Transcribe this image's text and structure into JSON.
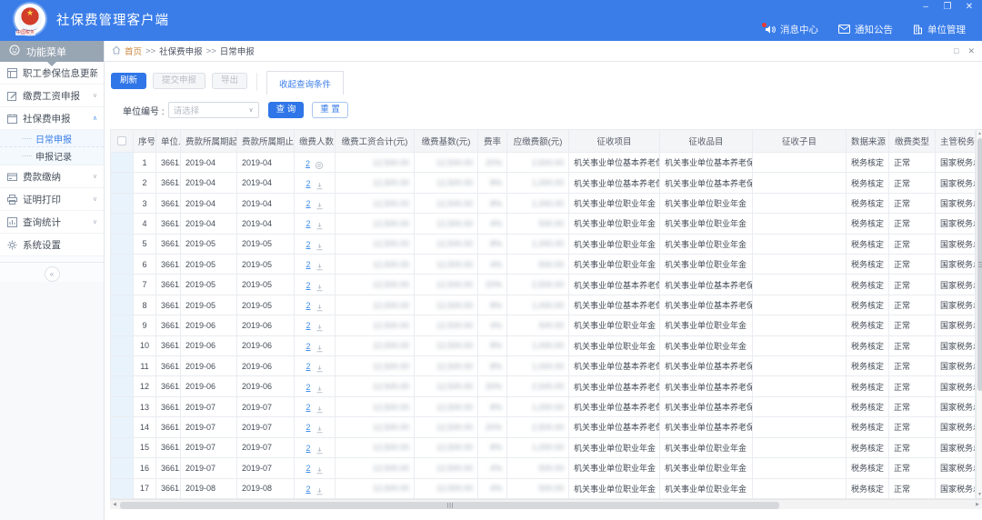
{
  "window": {
    "title": "社保费管理客户端",
    "controls": {
      "minimize": "–",
      "restore": "❐",
      "close": "✕"
    }
  },
  "logo": {
    "seal_text": "中国税务",
    "star": "★"
  },
  "header": {
    "nav": [
      {
        "icon": "speaker-icon",
        "label": "消息中心",
        "badge": true
      },
      {
        "icon": "mail-icon",
        "label": "通知公告",
        "badge": false
      },
      {
        "icon": "building-icon",
        "label": "单位管理",
        "badge": false
      }
    ]
  },
  "sidebar": {
    "title": "功能菜单",
    "collapse_label": "«",
    "items": [
      {
        "label": "职工参保信息更新",
        "icon": "form-icon",
        "chevron": null
      },
      {
        "label": "缴费工资申报",
        "icon": "edit-icon",
        "chevron": "down"
      },
      {
        "label": "社保费申报",
        "icon": "report-icon",
        "chevron": "up",
        "children": [
          {
            "label": "日常申报",
            "selected": true
          },
          {
            "label": "申报记录",
            "selected": false
          }
        ]
      },
      {
        "label": "费款缴纳",
        "icon": "payment-icon",
        "chevron": "down"
      },
      {
        "label": "证明打印",
        "icon": "print-icon",
        "chevron": "down"
      },
      {
        "label": "查询统计",
        "icon": "stats-icon",
        "chevron": "down"
      },
      {
        "label": "系统设置",
        "icon": "settings-icon",
        "chevron": null
      }
    ]
  },
  "breadcrumb": {
    "home": "首页",
    "sep": ">>",
    "items": [
      "社保费申报",
      "日常申报"
    ]
  },
  "panel": {
    "restore": "□",
    "close": "✕"
  },
  "toolbar": {
    "refresh": "刷新",
    "submit": "提交申报",
    "export": "导出",
    "collapse_query": "收起查询条件"
  },
  "query": {
    "label": "单位编号 :",
    "placeholder": "请选择",
    "search": "查 询",
    "reset": "重 置"
  },
  "table": {
    "columns": [
      "序号",
      "单位...",
      "费款所属期起",
      "费款所属期止",
      "缴费人数",
      "缴费工资合计(元)",
      "缴费基数(元)",
      "费率",
      "应缴费额(元)",
      "征收项目",
      "征收品目",
      "征收子目",
      "数据来源",
      "缴费类型",
      "主管税务机关"
    ],
    "redacted_columns": [
      "缴费工资合计(元)",
      "缴费基数(元)",
      "费率",
      "应缴费额(元)"
    ],
    "rows": [
      {
        "seq": "1",
        "unit": "3661...",
        "start": "2019-04",
        "end": "2019-04",
        "people": "2",
        "action": "view",
        "salary": "12,500.00",
        "base": "12,500.00",
        "rate": "20%",
        "amount": "2,500.00",
        "project": "机关事业单位基本养老保险费",
        "item": "机关事业单位基本养老保险...",
        "sub": "",
        "source": "税务核定",
        "type": "正常",
        "authority": "国家税务总局..."
      },
      {
        "seq": "2",
        "unit": "3661...",
        "start": "2019-04",
        "end": "2019-04",
        "people": "2",
        "action": "download",
        "salary": "12,500.00",
        "base": "12,500.00",
        "rate": "8%",
        "amount": "1,000.00",
        "project": "机关事业单位基本养老保险费",
        "item": "机关事业单位基本养老保险...",
        "sub": "",
        "source": "税务核定",
        "type": "正常",
        "authority": "国家税务总局..."
      },
      {
        "seq": "3",
        "unit": "3661...",
        "start": "2019-04",
        "end": "2019-04",
        "people": "2",
        "action": "download",
        "salary": "12,500.00",
        "base": "12,500.00",
        "rate": "8%",
        "amount": "1,000.00",
        "project": "机关事业单位职业年金",
        "item": "机关事业单位职业年金（单...",
        "sub": "",
        "source": "税务核定",
        "type": "正常",
        "authority": "国家税务总局..."
      },
      {
        "seq": "4",
        "unit": "3661...",
        "start": "2019-04",
        "end": "2019-04",
        "people": "2",
        "action": "download",
        "salary": "12,500.00",
        "base": "12,500.00",
        "rate": "4%",
        "amount": "500.00",
        "project": "机关事业单位职业年金",
        "item": "机关事业单位职业年金（个...",
        "sub": "",
        "source": "税务核定",
        "type": "正常",
        "authority": "国家税务总局..."
      },
      {
        "seq": "5",
        "unit": "3661...",
        "start": "2019-05",
        "end": "2019-05",
        "people": "2",
        "action": "download",
        "salary": "12,500.00",
        "base": "12,500.00",
        "rate": "8%",
        "amount": "1,000.00",
        "project": "机关事业单位职业年金",
        "item": "机关事业单位职业年金（单...",
        "sub": "",
        "source": "税务核定",
        "type": "正常",
        "authority": "国家税务总局..."
      },
      {
        "seq": "6",
        "unit": "3661...",
        "start": "2019-05",
        "end": "2019-05",
        "people": "2",
        "action": "download",
        "salary": "12,500.00",
        "base": "12,500.00",
        "rate": "4%",
        "amount": "500.00",
        "project": "机关事业单位职业年金",
        "item": "机关事业单位职业年金（个...",
        "sub": "",
        "source": "税务核定",
        "type": "正常",
        "authority": "国家税务总局..."
      },
      {
        "seq": "7",
        "unit": "3661...",
        "start": "2019-05",
        "end": "2019-05",
        "people": "2",
        "action": "download",
        "salary": "12,500.00",
        "base": "12,500.00",
        "rate": "20%",
        "amount": "2,500.00",
        "project": "机关事业单位基本养老保险费",
        "item": "机关事业单位基本养老保险...",
        "sub": "",
        "source": "税务核定",
        "type": "正常",
        "authority": "国家税务总局..."
      },
      {
        "seq": "8",
        "unit": "3661...",
        "start": "2019-05",
        "end": "2019-05",
        "people": "2",
        "action": "download",
        "salary": "12,500.00",
        "base": "12,500.00",
        "rate": "8%",
        "amount": "1,000.00",
        "project": "机关事业单位基本养老保险费",
        "item": "机关事业单位基本养老保险...",
        "sub": "",
        "source": "税务核定",
        "type": "正常",
        "authority": "国家税务总局..."
      },
      {
        "seq": "9",
        "unit": "3661...",
        "start": "2019-06",
        "end": "2019-06",
        "people": "2",
        "action": "download",
        "salary": "12,500.00",
        "base": "12,500.00",
        "rate": "4%",
        "amount": "500.00",
        "project": "机关事业单位职业年金",
        "item": "机关事业单位职业年金（个...",
        "sub": "",
        "source": "税务核定",
        "type": "正常",
        "authority": "国家税务总局..."
      },
      {
        "seq": "10",
        "unit": "3661...",
        "start": "2019-06",
        "end": "2019-06",
        "people": "2",
        "action": "download",
        "salary": "12,500.00",
        "base": "12,500.00",
        "rate": "8%",
        "amount": "1,000.00",
        "project": "机关事业单位职业年金",
        "item": "机关事业单位职业年金（单...",
        "sub": "",
        "source": "税务核定",
        "type": "正常",
        "authority": "国家税务总局..."
      },
      {
        "seq": "11",
        "unit": "3661...",
        "start": "2019-06",
        "end": "2019-06",
        "people": "2",
        "action": "download",
        "salary": "12,500.00",
        "base": "12,500.00",
        "rate": "8%",
        "amount": "1,000.00",
        "project": "机关事业单位基本养老保险费",
        "item": "机关事业单位基本养老保险...",
        "sub": "",
        "source": "税务核定",
        "type": "正常",
        "authority": "国家税务总局..."
      },
      {
        "seq": "12",
        "unit": "3661...",
        "start": "2019-06",
        "end": "2019-06",
        "people": "2",
        "action": "download",
        "salary": "12,500.00",
        "base": "12,500.00",
        "rate": "20%",
        "amount": "2,500.00",
        "project": "机关事业单位基本养老保险费",
        "item": "机关事业单位基本养老保险...",
        "sub": "",
        "source": "税务核定",
        "type": "正常",
        "authority": "国家税务总局..."
      },
      {
        "seq": "13",
        "unit": "3661...",
        "start": "2019-07",
        "end": "2019-07",
        "people": "2",
        "action": "download",
        "salary": "12,500.00",
        "base": "12,500.00",
        "rate": "8%",
        "amount": "1,000.00",
        "project": "机关事业单位基本养老保险费",
        "item": "机关事业单位基本养老保险...",
        "sub": "",
        "source": "税务核定",
        "type": "正常",
        "authority": "国家税务总局..."
      },
      {
        "seq": "14",
        "unit": "3661...",
        "start": "2019-07",
        "end": "2019-07",
        "people": "2",
        "action": "download",
        "salary": "12,500.00",
        "base": "12,500.00",
        "rate": "20%",
        "amount": "2,500.00",
        "project": "机关事业单位基本养老保险费",
        "item": "机关事业单位基本养老保险...",
        "sub": "",
        "source": "税务核定",
        "type": "正常",
        "authority": "国家税务总局..."
      },
      {
        "seq": "15",
        "unit": "3661...",
        "start": "2019-07",
        "end": "2019-07",
        "people": "2",
        "action": "download",
        "salary": "12,500.00",
        "base": "12,500.00",
        "rate": "8%",
        "amount": "1,000.00",
        "project": "机关事业单位职业年金",
        "item": "机关事业单位职业年金（单...",
        "sub": "",
        "source": "税务核定",
        "type": "正常",
        "authority": "国家税务总局..."
      },
      {
        "seq": "16",
        "unit": "3661...",
        "start": "2019-07",
        "end": "2019-07",
        "people": "2",
        "action": "download",
        "salary": "12,500.00",
        "base": "12,500.00",
        "rate": "4%",
        "amount": "500.00",
        "project": "机关事业单位职业年金",
        "item": "机关事业单位职业年金（个...",
        "sub": "",
        "source": "税务核定",
        "type": "正常",
        "authority": "国家税务总局..."
      },
      {
        "seq": "17",
        "unit": "3661...",
        "start": "2019-08",
        "end": "2019-08",
        "people": "2",
        "action": "download",
        "salary": "12,500.00",
        "base": "12,500.00",
        "rate": "4%",
        "amount": "500.00",
        "project": "机关事业单位职业年金",
        "item": "机关事业单位职业年金（个...",
        "sub": "",
        "source": "税务核定",
        "type": "正常",
        "authority": "国家税务总局..."
      }
    ]
  },
  "colors": {
    "header_blue": "#3a7de9",
    "primary_blue": "#3076e8",
    "link_blue": "#3e8ce8",
    "menu_gray": "#98a5b3",
    "breadcrumb_home": "#cd8640",
    "check_col_bg": "#e9f3fc"
  }
}
